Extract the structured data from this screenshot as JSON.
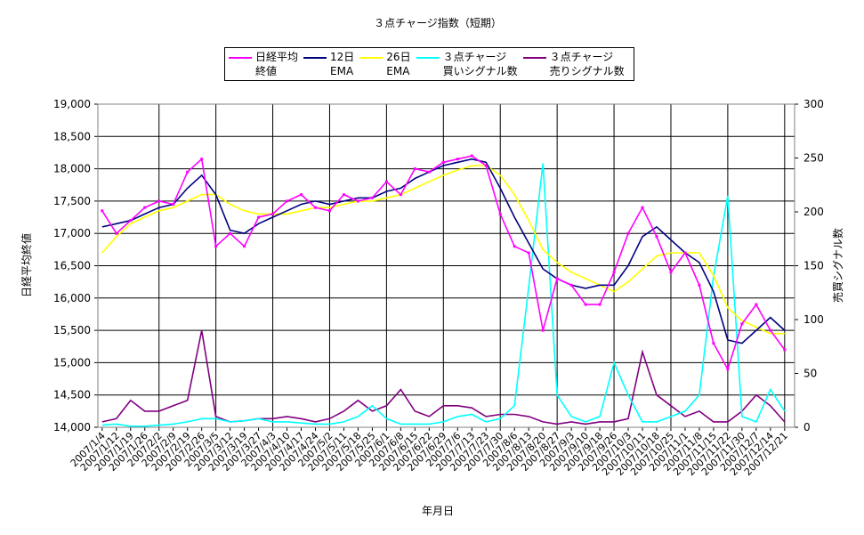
{
  "chart_data": {
    "type": "line",
    "title": "３点チャージ指数（短期）",
    "x_label": "年月日",
    "y_label": "日経平均終値",
    "y2_label": "売買シグナル数",
    "categories": [
      "2007/1/4",
      "2007/1/12",
      "2007/1/19",
      "2007/1/26",
      "2007/2/2",
      "2007/2/9",
      "2007/2/19",
      "2007/2/26",
      "2007/3/5",
      "2007/3/12",
      "2007/3/19",
      "2007/3/27",
      "2007/4/3",
      "2007/4/10",
      "2007/4/17",
      "2007/4/24",
      "2007/5/2",
      "2007/5/11",
      "2007/5/18",
      "2007/5/25",
      "2007/6/1",
      "2007/6/8",
      "2007/6/15",
      "2007/6/22",
      "2007/6/29",
      "2007/7/6",
      "2007/7/13",
      "2007/7/23",
      "2007/7/30",
      "2007/8/6",
      "2007/8/13",
      "2007/8/20",
      "2007/8/27",
      "2007/9/3",
      "2007/9/10",
      "2007/9/18",
      "2007/9/26",
      "2007/10/3",
      "2007/10/11",
      "2007/10/18",
      "2007/10/25",
      "2007/11/1",
      "2007/11/8",
      "2007/11/15",
      "2007/11/22",
      "2007/11/30",
      "2007/12/7",
      "2007/12/14",
      "2007/12/21"
    ],
    "series": [
      {
        "name": "日経平均\n終値",
        "color": "#ff00ff",
        "axis": "y",
        "values": [
          17350,
          17000,
          17200,
          17400,
          17500,
          17450,
          17950,
          18150,
          16800,
          17000,
          16800,
          17250,
          17300,
          17500,
          17600,
          17400,
          17350,
          17600,
          17500,
          17550,
          17800,
          17600,
          18000,
          17950,
          18100,
          18150,
          18200,
          18050,
          17300,
          16800,
          16700,
          15500,
          16300,
          16200,
          15900,
          15900,
          16400,
          17000,
          17400,
          16950,
          16400,
          16700,
          16200,
          15300,
          14900,
          15600,
          15900,
          15500,
          15200
        ]
      },
      {
        "name": "12日\nEMA",
        "color": "#000080",
        "axis": "y",
        "values": [
          17100,
          17150,
          17200,
          17300,
          17400,
          17450,
          17700,
          17900,
          17600,
          17050,
          17000,
          17150,
          17250,
          17350,
          17450,
          17500,
          17450,
          17500,
          17550,
          17550,
          17650,
          17700,
          17850,
          17950,
          18050,
          18100,
          18150,
          18100,
          17700,
          17250,
          16850,
          16450,
          16300,
          16200,
          16150,
          16200,
          16200,
          16500,
          16950,
          17100,
          16900,
          16700,
          16550,
          16100,
          15350,
          15300,
          15500,
          15700,
          15500
        ]
      },
      {
        "name": "26日\nEMA",
        "color": "#ffff00",
        "axis": "y",
        "values": [
          16700,
          16950,
          17150,
          17250,
          17350,
          17400,
          17500,
          17600,
          17600,
          17450,
          17350,
          17300,
          17300,
          17300,
          17350,
          17400,
          17400,
          17450,
          17500,
          17500,
          17550,
          17600,
          17700,
          17800,
          17900,
          17980,
          18050,
          18050,
          17900,
          17600,
          17200,
          16750,
          16550,
          16400,
          16300,
          16200,
          16100,
          16250,
          16450,
          16650,
          16700,
          16700,
          16700,
          16350,
          15850,
          15650,
          15550,
          15450,
          15450
        ]
      },
      {
        "name": "３点チャージ\n買いシグナル数",
        "color": "#00ffff",
        "axis": "y2",
        "values": [
          2,
          3,
          1,
          1,
          2,
          3,
          5,
          8,
          8,
          5,
          6,
          8,
          5,
          5,
          4,
          3,
          3,
          5,
          10,
          20,
          8,
          3,
          3,
          3,
          5,
          10,
          12,
          5,
          8,
          20,
          130,
          245,
          30,
          10,
          5,
          10,
          60,
          30,
          5,
          5,
          10,
          15,
          30,
          140,
          215,
          10,
          5,
          35,
          15
        ]
      },
      {
        "name": "３点チャージ\n売りシグナル数",
        "color": "#800080",
        "axis": "y2",
        "values": [
          5,
          8,
          25,
          15,
          15,
          20,
          25,
          90,
          10,
          5,
          6,
          8,
          8,
          10,
          8,
          5,
          8,
          15,
          25,
          15,
          20,
          35,
          15,
          10,
          20,
          20,
          18,
          10,
          12,
          12,
          10,
          5,
          3,
          5,
          3,
          5,
          5,
          8,
          70,
          30,
          20,
          10,
          15,
          5,
          5,
          15,
          30,
          20,
          5
        ]
      }
    ],
    "ylim": [
      14000,
      19000
    ],
    "yticks": [
      {
        "value": 14000,
        "label": "14,000"
      },
      {
        "value": 14500,
        "label": "14,500"
      },
      {
        "value": 15000,
        "label": "15,000"
      },
      {
        "value": 15500,
        "label": "15,500"
      },
      {
        "value": 16000,
        "label": "16,000"
      },
      {
        "value": 16500,
        "label": "16,500"
      },
      {
        "value": 17000,
        "label": "17,000"
      },
      {
        "value": 17500,
        "label": "17,500"
      },
      {
        "value": 18000,
        "label": "18,000"
      },
      {
        "value": 18500,
        "label": "18,500"
      },
      {
        "value": 19000,
        "label": "19,000"
      }
    ],
    "y2lim": [
      0,
      300
    ],
    "y2ticks": [
      0,
      50,
      100,
      150,
      200,
      250,
      300
    ],
    "grid": true
  }
}
